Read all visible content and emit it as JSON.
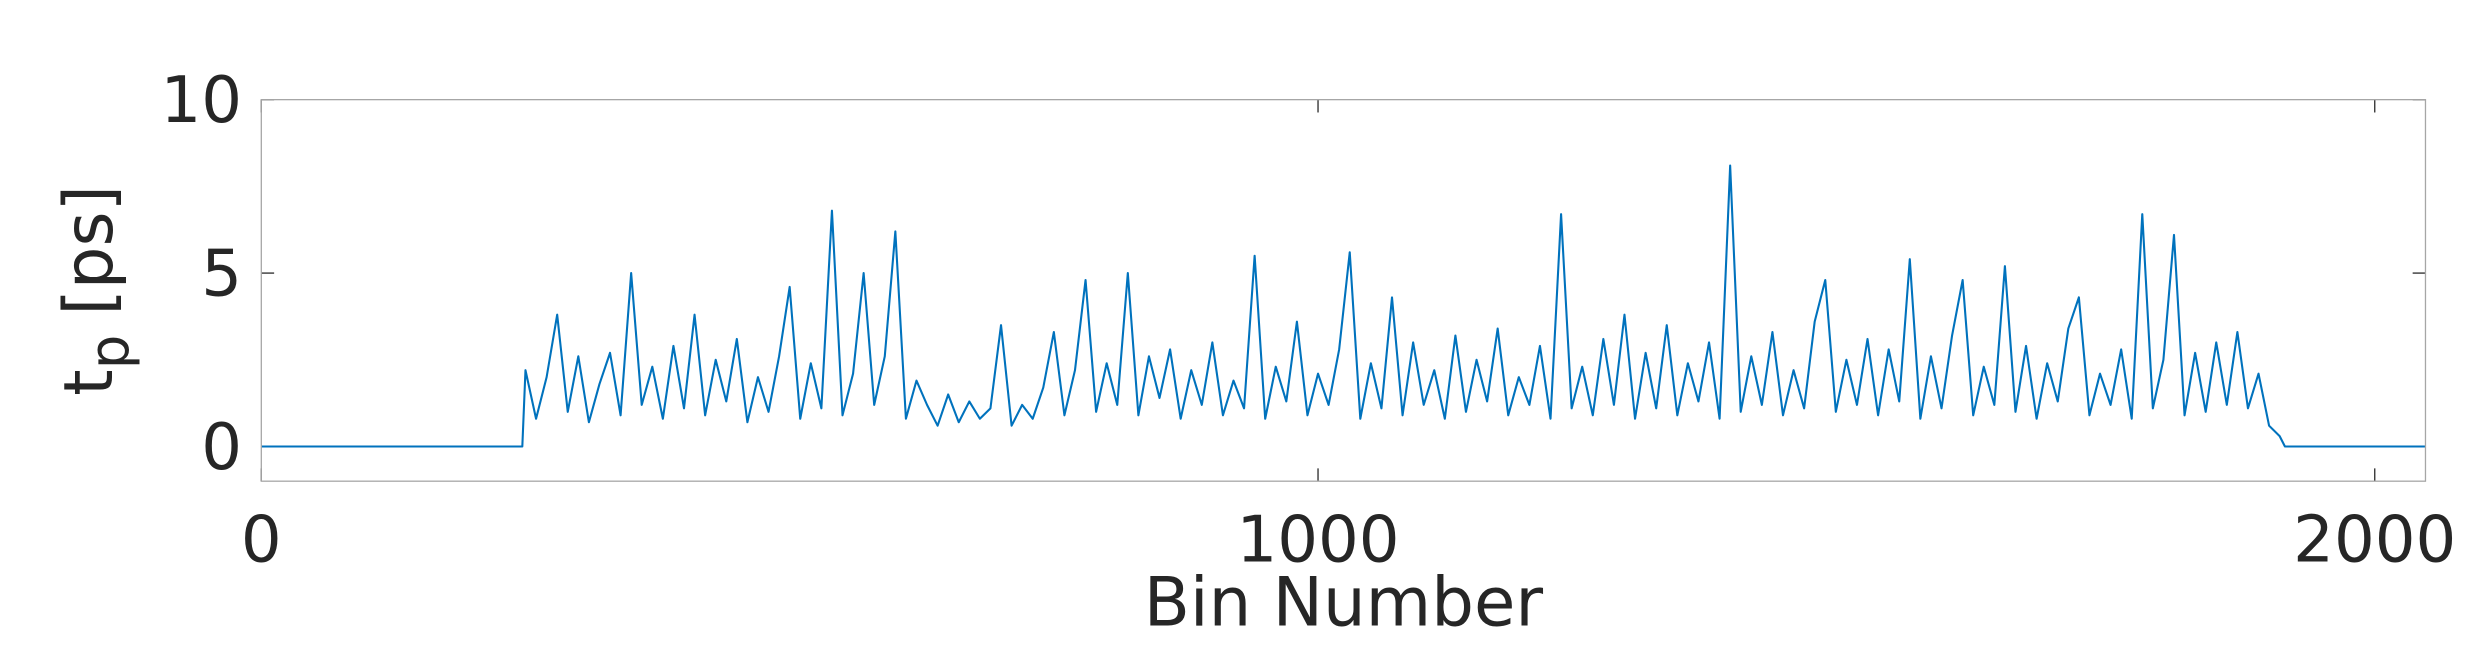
{
  "chart_data": {
    "type": "line",
    "xlabel": "Bin Number",
    "ylabel": {
      "base": "t",
      "sub": "p",
      "unit": "[ps]"
    },
    "xlim": [
      0,
      2048
    ],
    "ylim": [
      -1,
      10
    ],
    "xticks": [
      0,
      1000,
      2000
    ],
    "yticks": [
      0,
      5,
      10
    ],
    "grid": false,
    "series": [
      {
        "color": "#0072bd",
        "x": [
          0,
          247,
          250,
          260,
          270,
          280,
          290,
          300,
          310,
          320,
          330,
          340,
          350,
          360,
          370,
          380,
          390,
          400,
          410,
          420,
          430,
          440,
          450,
          460,
          470,
          480,
          490,
          500,
          510,
          520,
          530,
          540,
          550,
          560,
          570,
          580,
          590,
          600,
          610,
          620,
          630,
          640,
          650,
          660,
          670,
          680,
          690,
          700,
          710,
          720,
          730,
          740,
          750,
          760,
          770,
          780,
          790,
          800,
          810,
          820,
          830,
          840,
          850,
          860,
          870,
          880,
          890,
          900,
          910,
          920,
          930,
          940,
          950,
          960,
          970,
          980,
          990,
          1000,
          1010,
          1020,
          1030,
          1040,
          1050,
          1060,
          1070,
          1080,
          1090,
          1100,
          1110,
          1120,
          1130,
          1140,
          1150,
          1160,
          1170,
          1180,
          1190,
          1200,
          1210,
          1220,
          1230,
          1240,
          1250,
          1260,
          1270,
          1280,
          1290,
          1300,
          1310,
          1320,
          1330,
          1340,
          1350,
          1360,
          1370,
          1380,
          1390,
          1400,
          1410,
          1420,
          1430,
          1440,
          1450,
          1460,
          1470,
          1480,
          1490,
          1500,
          1510,
          1520,
          1530,
          1540,
          1550,
          1560,
          1570,
          1580,
          1590,
          1600,
          1610,
          1620,
          1630,
          1640,
          1650,
          1660,
          1670,
          1680,
          1690,
          1700,
          1710,
          1720,
          1730,
          1740,
          1750,
          1760,
          1770,
          1780,
          1790,
          1800,
          1810,
          1820,
          1830,
          1840,
          1850,
          1860,
          1870,
          1880,
          1890,
          1900,
          1910,
          1915,
          2048
        ],
        "values": [
          0,
          0,
          2.2,
          0.8,
          2.0,
          3.8,
          1.0,
          2.6,
          0.7,
          1.8,
          2.7,
          0.9,
          5.0,
          1.2,
          2.3,
          0.8,
          2.9,
          1.1,
          3.8,
          0.9,
          2.5,
          1.3,
          3.1,
          0.7,
          2.0,
          1.0,
          2.6,
          4.6,
          0.8,
          2.4,
          1.1,
          6.8,
          0.9,
          2.1,
          5.0,
          1.2,
          2.6,
          6.2,
          0.8,
          1.9,
          1.2,
          0.6,
          1.5,
          0.7,
          1.3,
          0.8,
          1.1,
          3.5,
          0.6,
          1.2,
          0.8,
          1.7,
          3.3,
          0.9,
          2.2,
          4.8,
          1.0,
          2.4,
          1.2,
          5.0,
          0.9,
          2.6,
          1.4,
          2.8,
          0.8,
          2.2,
          1.2,
          3.0,
          0.9,
          1.9,
          1.1,
          5.5,
          0.8,
          2.3,
          1.3,
          3.6,
          0.9,
          2.1,
          1.2,
          2.8,
          5.6,
          0.8,
          2.4,
          1.1,
          4.3,
          0.9,
          3.0,
          1.2,
          2.2,
          0.8,
          3.2,
          1.0,
          2.5,
          1.3,
          3.4,
          0.9,
          2.0,
          1.2,
          2.9,
          0.8,
          6.7,
          1.1,
          2.3,
          0.9,
          3.1,
          1.2,
          3.8,
          0.8,
          2.7,
          1.1,
          3.5,
          0.9,
          2.4,
          1.3,
          3.0,
          0.8,
          8.1,
          1.0,
          2.6,
          1.2,
          3.3,
          0.9,
          2.2,
          1.1,
          3.6,
          4.8,
          1.0,
          2.5,
          1.2,
          3.1,
          0.9,
          2.8,
          1.3,
          5.4,
          0.8,
          2.6,
          1.1,
          3.2,
          4.8,
          0.9,
          2.3,
          1.2,
          5.2,
          1.0,
          2.9,
          0.8,
          2.4,
          1.3,
          3.4,
          4.3,
          0.9,
          2.1,
          1.2,
          2.8,
          0.8,
          6.7,
          1.1,
          2.5,
          6.1,
          0.9,
          2.7,
          1.0,
          3.0,
          1.2,
          3.3,
          1.1,
          2.1,
          0.6,
          0.3,
          0,
          0
        ]
      }
    ]
  }
}
